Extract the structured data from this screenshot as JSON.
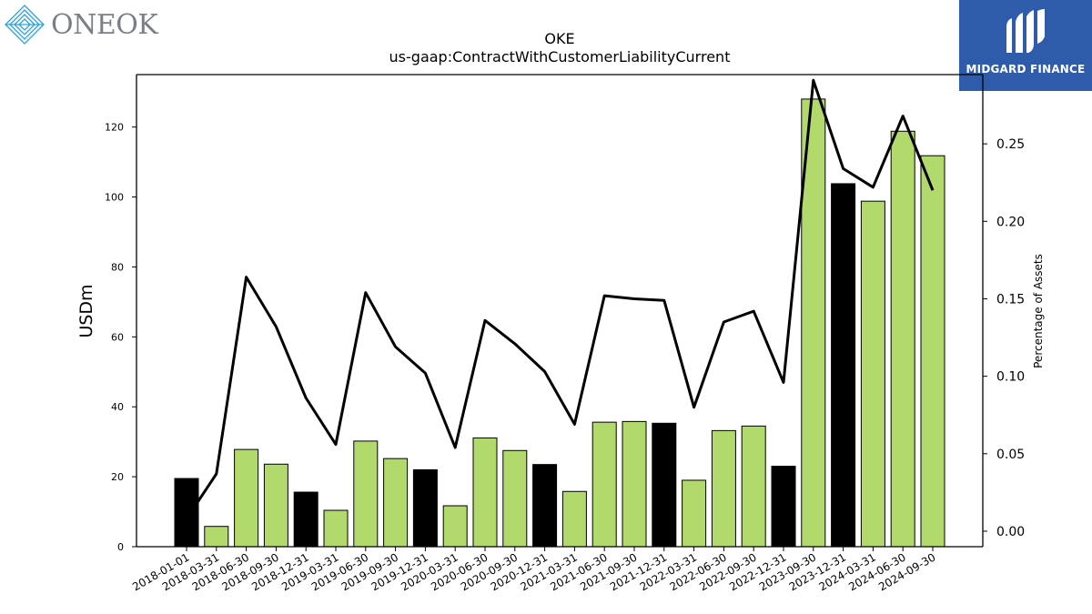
{
  "logos": {
    "left_text": "ONEOK",
    "right_text": "MIDGARD FINANCE"
  },
  "colors": {
    "bar_green": "#b1d96b",
    "bar_black": "#000000",
    "line": "#000000",
    "brand_blue": "#2f5bab",
    "oneok_blue": "#29a3dd"
  },
  "chart_data": {
    "type": "bar",
    "title": "OKE",
    "subtitle": "us-gaap:ContractWithCustomerLiabilityCurrent",
    "ylabel": "USDm",
    "y2label": "Percentage of Assets",
    "ylim": [
      0,
      135
    ],
    "y2lim": [
      -0.01,
      0.2947
    ],
    "yticks": [
      0,
      20,
      40,
      60,
      80,
      100,
      120
    ],
    "y2ticks": [
      0.0,
      0.05,
      0.1,
      0.15,
      0.2,
      0.25
    ],
    "y2tick_labels": [
      "0.00",
      "0.05",
      "0.10",
      "0.15",
      "0.20",
      "0.25"
    ],
    "categories": [
      "2018-01-01",
      "2018-03-31",
      "2018-06-30",
      "2018-09-30",
      "2018-12-31",
      "2019-03-31",
      "2019-06-30",
      "2019-09-30",
      "2019-12-31",
      "2020-03-31",
      "2020-06-30",
      "2020-09-30",
      "2020-12-31",
      "2021-03-31",
      "2021-06-30",
      "2021-09-30",
      "2021-12-31",
      "2022-03-31",
      "2022-06-30",
      "2022-09-30",
      "2022-12-31",
      "2023-09-30",
      "2023-12-31",
      "2024-03-31",
      "2024-06-30",
      "2024-09-30"
    ],
    "series": [
      {
        "kind": "bar",
        "values": [
          19.5,
          5.8,
          27.8,
          23.6,
          15.6,
          10.4,
          30.2,
          25.2,
          22.0,
          11.7,
          31.1,
          27.5,
          23.5,
          15.8,
          35.6,
          35.8,
          35.3,
          19.0,
          33.2,
          34.5,
          23.0,
          128.0,
          103.8,
          98.8,
          118.8,
          111.8
        ],
        "year_end": [
          true,
          false,
          false,
          false,
          true,
          false,
          false,
          false,
          true,
          false,
          false,
          false,
          true,
          false,
          false,
          false,
          true,
          false,
          false,
          false,
          true,
          false,
          true,
          false,
          false,
          false
        ]
      },
      {
        "kind": "line",
        "axis": "right",
        "values": [
          0.008,
          0.037,
          0.164,
          0.132,
          0.086,
          0.056,
          0.154,
          0.119,
          0.102,
          0.054,
          0.136,
          0.121,
          0.103,
          0.069,
          0.152,
          0.15,
          0.149,
          0.08,
          0.135,
          0.142,
          0.096,
          0.291,
          0.234,
          0.222,
          0.268,
          0.22
        ]
      }
    ],
    "grid": false,
    "legend": "none"
  }
}
